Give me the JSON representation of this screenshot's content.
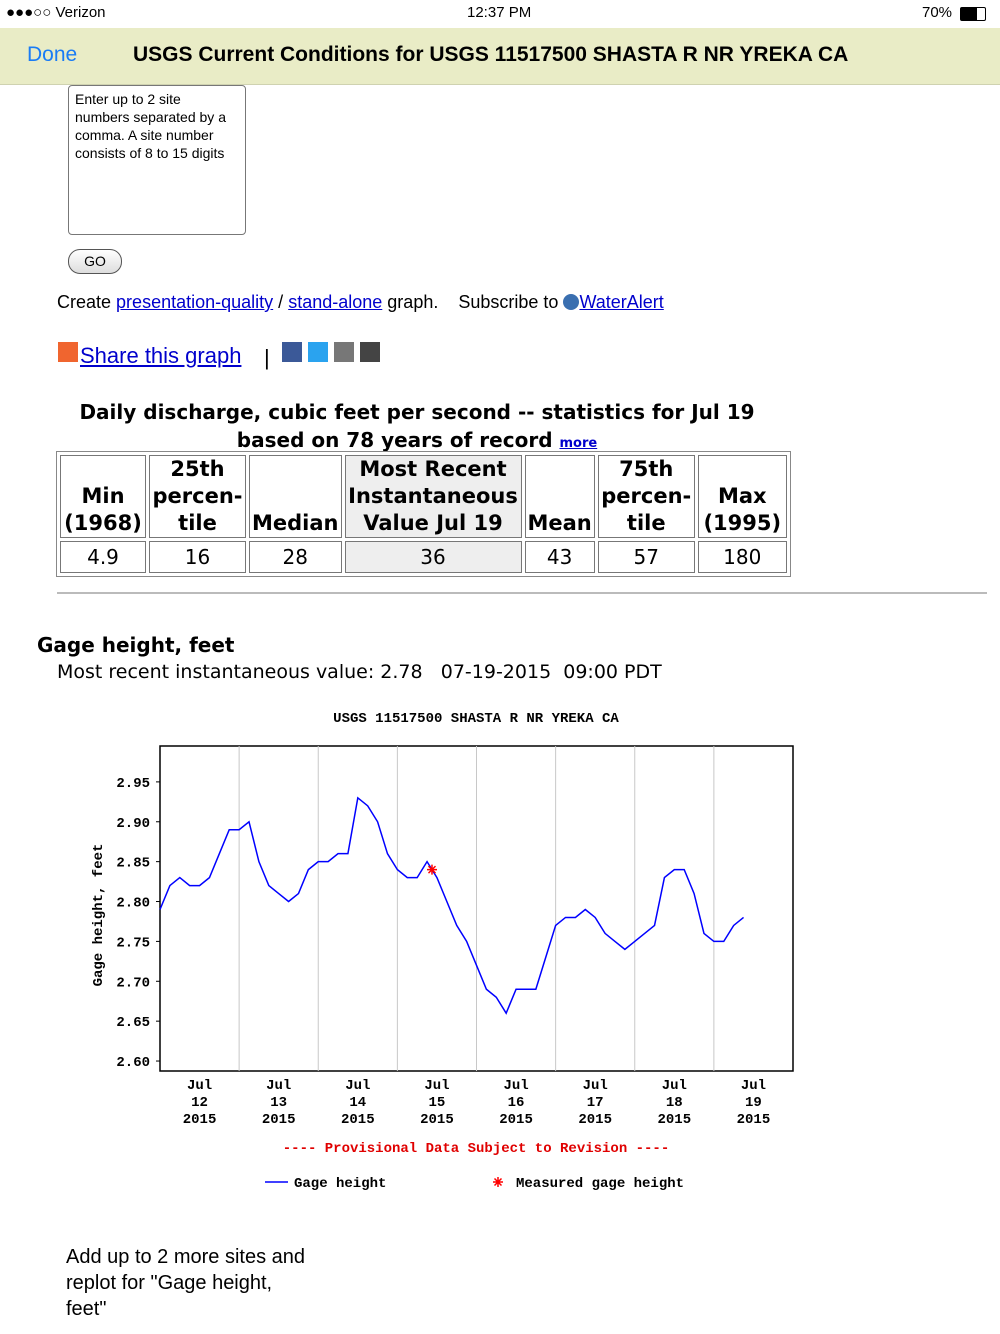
{
  "status_bar": {
    "carrier": "●●●○○ Verizon",
    "time": "12:37 PM",
    "battery": "70%"
  },
  "nav": {
    "done": "Done",
    "title": "USGS Current Conditions for USGS 11517500 SHASTA R NR YREKA CA"
  },
  "site_input": {
    "placeholder": "Enter up to 2 site numbers separated by a comma. A site number consists of 8 to 15 digits",
    "button": "GO"
  },
  "links": {
    "create": "Create",
    "presentation": "presentation-quality",
    "slash": "/",
    "standalone": "stand-alone",
    "graph": "graph.",
    "subscribe": "Subscribe to",
    "wateralert": "WaterAlert",
    "share": "Share this graph",
    "pipe": "|"
  },
  "stats_table": {
    "caption": "Daily discharge, cubic feet per second -- statistics for Jul 19",
    "caption_line2": "based on 78 years of record",
    "more": "more",
    "headers": [
      [
        "Min",
        "(1968)"
      ],
      [
        "25th",
        "percen-",
        "tile"
      ],
      [
        "Median"
      ],
      [
        "Most Recent",
        "Instantaneous",
        "Value Jul 19"
      ],
      [
        "Mean"
      ],
      [
        "75th",
        "percen-",
        "tile"
      ],
      [
        "Max",
        "(1995)"
      ]
    ],
    "values": [
      4.9,
      16,
      28,
      36,
      43,
      57,
      180
    ]
  },
  "gage": {
    "heading": "Gage height, feet",
    "recent_label": "Most recent instantaneous value:",
    "recent_value": 2.78,
    "date": "07-19-2015",
    "time": "09:00 PDT"
  },
  "chart_data": {
    "type": "line",
    "title": "USGS 11517500 SHASTA R NR YREKA CA",
    "y_label": "Gage height, feet",
    "note": "---- Provisional Data Subject to Revision ----",
    "xlim": [
      "2015-07-12",
      "2015-07-20"
    ],
    "xticks": [
      {
        "value": "2015-07-12",
        "label": "Jul 12 2015"
      },
      {
        "value": "2015-07-13",
        "label": "Jul 13 2015"
      },
      {
        "value": "2015-07-14",
        "label": "Jul 14 2015"
      },
      {
        "value": "2015-07-15",
        "label": "Jul 15 2015"
      },
      {
        "value": "2015-07-16",
        "label": "Jul 16 2015"
      },
      {
        "value": "2015-07-17",
        "label": "Jul 17 2015"
      },
      {
        "value": "2015-07-18",
        "label": "Jul 18 2015"
      },
      {
        "value": "2015-07-19",
        "label": "Jul 19 2015"
      }
    ],
    "ylim": [
      2.5875,
      2.995
    ],
    "yticks": [
      {
        "value": 2.6,
        "label": "2.60"
      },
      2.65,
      {
        "value": 2.7,
        "label": "2.70"
      },
      2.75,
      {
        "value": 2.8,
        "label": "2.80"
      },
      2.85,
      {
        "value": 2.9,
        "label": "2.90"
      },
      2.95
    ],
    "grid": "x",
    "series": [
      {
        "name": "Gage height",
        "color": "#0000ff",
        "marker": "line",
        "x": [
          "2015-07-12 00:00",
          "2015-07-12 03:00",
          "2015-07-12 06:00",
          "2015-07-12 09:00",
          "2015-07-12 12:00",
          "2015-07-12 15:00",
          "2015-07-12 18:00",
          "2015-07-12 21:00",
          "2015-07-13 00:00",
          "2015-07-13 03:00",
          "2015-07-13 06:00",
          "2015-07-13 09:00",
          "2015-07-13 12:00",
          "2015-07-13 15:00",
          "2015-07-13 18:00",
          "2015-07-13 21:00",
          "2015-07-14 00:00",
          "2015-07-14 03:00",
          "2015-07-14 06:00",
          "2015-07-14 09:00",
          "2015-07-14 12:00",
          "2015-07-14 15:00",
          "2015-07-14 18:00",
          "2015-07-14 21:00",
          "2015-07-15 00:00",
          "2015-07-15 03:00",
          "2015-07-15 06:00",
          "2015-07-15 09:00",
          "2015-07-15 12:00",
          "2015-07-15 15:00",
          "2015-07-15 18:00",
          "2015-07-15 21:00",
          "2015-07-16 00:00",
          "2015-07-16 03:00",
          "2015-07-16 06:00",
          "2015-07-16 09:00",
          "2015-07-16 12:00",
          "2015-07-16 15:00",
          "2015-07-16 18:00",
          "2015-07-16 21:00",
          "2015-07-17 00:00",
          "2015-07-17 03:00",
          "2015-07-17 06:00",
          "2015-07-17 09:00",
          "2015-07-17 12:00",
          "2015-07-17 15:00",
          "2015-07-17 18:00",
          "2015-07-17 21:00",
          "2015-07-18 00:00",
          "2015-07-18 03:00",
          "2015-07-18 06:00",
          "2015-07-18 09:00",
          "2015-07-18 12:00",
          "2015-07-18 15:00",
          "2015-07-18 18:00",
          "2015-07-18 21:00",
          "2015-07-19 00:00",
          "2015-07-19 03:00",
          "2015-07-19 06:00",
          "2015-07-19 09:00"
        ],
        "values": [
          2.79,
          2.82,
          2.83,
          2.82,
          2.82,
          2.83,
          2.86,
          2.89,
          2.89,
          2.9,
          2.85,
          2.82,
          2.81,
          2.8,
          2.81,
          2.84,
          2.85,
          2.85,
          2.86,
          2.86,
          2.93,
          2.92,
          2.9,
          2.86,
          2.84,
          2.83,
          2.83,
          2.85,
          2.83,
          2.8,
          2.77,
          2.75,
          2.72,
          2.69,
          2.68,
          2.66,
          2.69,
          2.69,
          2.69,
          2.73,
          2.77,
          2.78,
          2.78,
          2.79,
          2.78,
          2.76,
          2.75,
          2.74,
          2.75,
          2.76,
          2.77,
          2.83,
          2.84,
          2.84,
          2.81,
          2.76,
          2.75,
          2.75,
          2.77,
          2.78
        ]
      },
      {
        "name": "Measured gage height",
        "color": "#ff0000",
        "marker": "asterisk",
        "x": [
          "2015-07-15 10:30"
        ],
        "values": [
          2.84
        ]
      }
    ]
  },
  "footer": {
    "text": "Add up to 2 more sites and replot for \"Gage height, feet\""
  }
}
